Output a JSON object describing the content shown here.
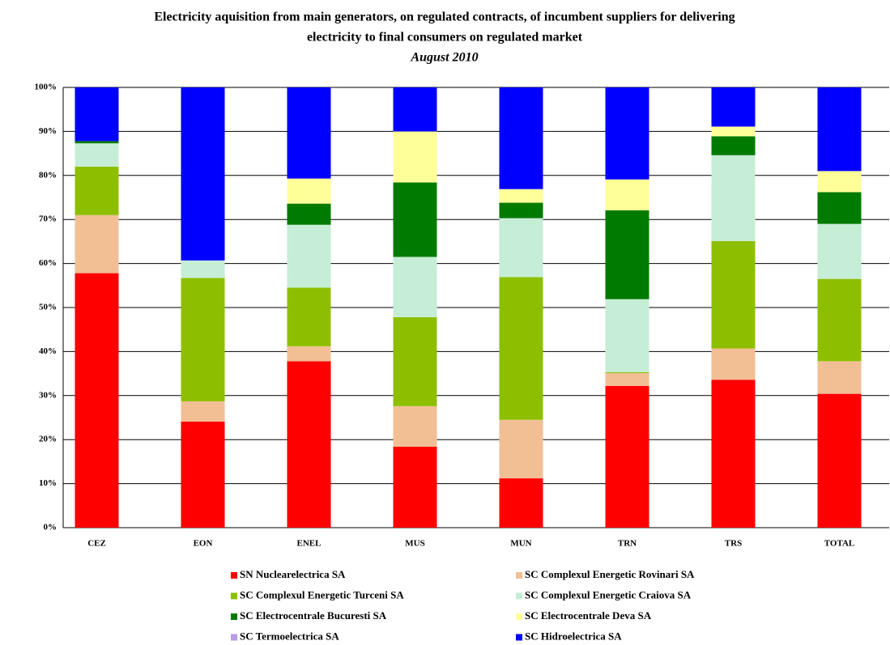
{
  "chart_data": {
    "type": "stacked_bar",
    "title": [
      "Electricity aquisition from main generators, on regulated contracts, of incumbent suppliers for delivering",
      "electricity to final consumers on regulated market"
    ],
    "subtitle": "August 2010",
    "categories": [
      "CEZ",
      "EON",
      "ENEL",
      "MUS",
      "MUN",
      "TRN",
      "TRS",
      "TOTAL"
    ],
    "series": [
      {
        "name": "SN Nuclearelectrica SA",
        "color": "#ff0000",
        "values": [
          57.8,
          24.1,
          37.8,
          18.4,
          11.2,
          32.2,
          33.6,
          30.4
        ]
      },
      {
        "name": "SC Complexul Energetic Rovinari SA",
        "color": "#f2bf95",
        "values": [
          13.2,
          4.6,
          3.4,
          9.2,
          13.3,
          2.9,
          7.1,
          7.4
        ]
      },
      {
        "name": "SC Complexul Energetic Turceni SA",
        "color": "#8dbf00",
        "values": [
          11,
          28,
          13.3,
          20.2,
          32.4,
          0.2,
          24.4,
          18.7
        ]
      },
      {
        "name": "SC Complexul Energetic Craiova SA",
        "color": "#c6edd6",
        "values": [
          5.3,
          4,
          14.3,
          13.7,
          13.4,
          16.6,
          19.5,
          12.5
        ]
      },
      {
        "name": "SC Electrocentrale Bucuresti SA",
        "color": "#007a00",
        "values": [
          0.5,
          0,
          4.8,
          16.9,
          3.5,
          20.2,
          4.3,
          7.2
        ]
      },
      {
        "name": "SC Electrocentrale Deva SA",
        "color": "#ffff99",
        "values": [
          0,
          0,
          5.7,
          11.6,
          3.1,
          7,
          2.2,
          4.8
        ]
      },
      {
        "name": "SC Termoelectrica SA",
        "color": "#b49ee0",
        "values": [
          0,
          0,
          0,
          0,
          0,
          0,
          0,
          0
        ]
      },
      {
        "name": "SC Hidroelectrica SA",
        "color": "#0000ff",
        "values": [
          12.2,
          39.3,
          20.7,
          10,
          23.1,
          20.9,
          8.9,
          19
        ]
      }
    ],
    "ylim": [
      0,
      100
    ],
    "yticks": [
      {
        "value": 0,
        "label": "0%"
      },
      {
        "value": 10,
        "label": "10%"
      },
      {
        "value": 20,
        "label": "20%"
      },
      {
        "value": 30,
        "label": "30%"
      },
      {
        "value": 40,
        "label": "40%"
      },
      {
        "value": 50,
        "label": "50%"
      },
      {
        "value": 60,
        "label": "60%"
      },
      {
        "value": 70,
        "label": "70%"
      },
      {
        "value": 80,
        "label": "80%"
      },
      {
        "value": 90,
        "label": "90%"
      },
      {
        "value": 100,
        "label": "100%"
      }
    ],
    "grid": true
  }
}
